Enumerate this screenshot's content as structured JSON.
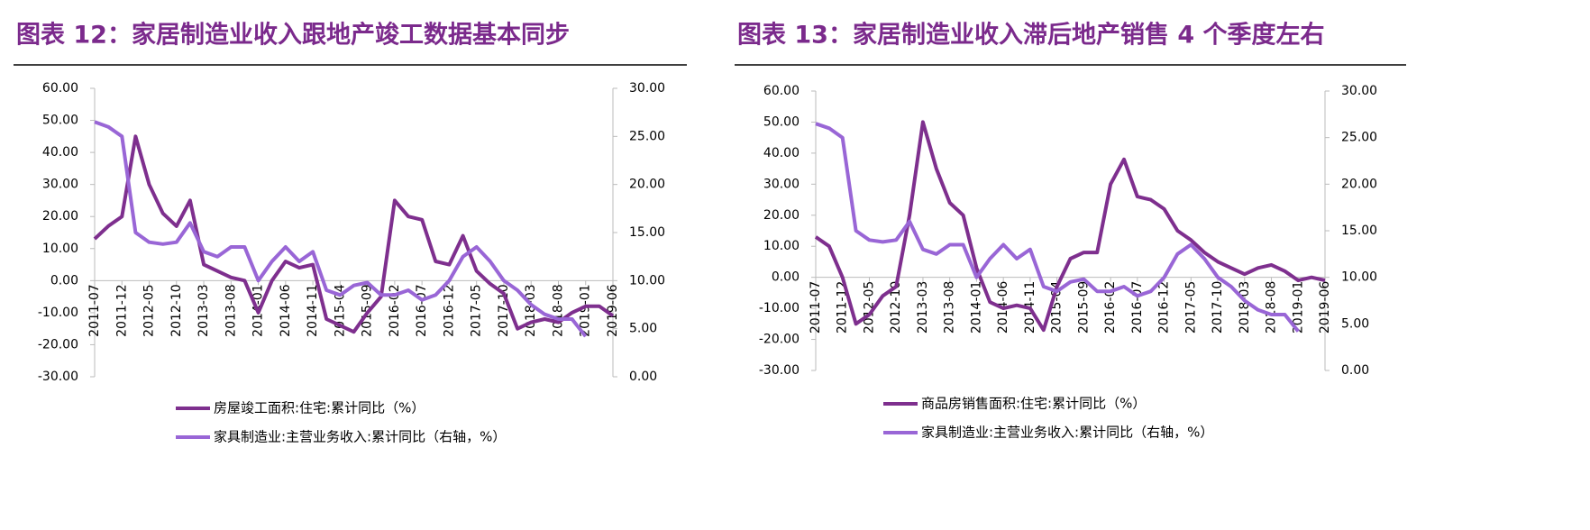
{
  "chart_data": [
    {
      "type": "line",
      "title": "图表 12：家居制造业收入跟地产竣工数据基本同步",
      "categories": [
        "2011-07",
        null,
        "2011-12",
        null,
        "2012-05",
        null,
        "2012-10",
        null,
        "2013-03",
        null,
        "2013-08",
        null,
        "2014-01",
        null,
        "2014-06",
        null,
        "2014-11",
        null,
        "2015-04",
        null,
        "2015-09",
        null,
        "2016-02",
        null,
        "2016-07",
        null,
        "2016-12",
        null,
        "2017-05",
        null,
        "2017-10",
        null,
        "2018-03",
        null,
        "2018-08",
        null,
        "2019-01",
        null,
        "2019-06"
      ],
      "ylim": [
        -30,
        60
      ],
      "yticks": [
        {
          "value": -30,
          "label": "-30.00"
        },
        {
          "value": -20,
          "label": "-20.00"
        },
        {
          "value": -10,
          "label": "-10.00"
        },
        {
          "value": 0,
          "label": "0.00"
        },
        {
          "value": 10,
          "label": "10.00"
        },
        {
          "value": 20,
          "label": "20.00"
        },
        {
          "value": 30,
          "label": "30.00"
        },
        {
          "value": 40,
          "label": "40.00"
        },
        {
          "value": 50,
          "label": "50.00"
        },
        {
          "value": 60,
          "label": "60.00"
        }
      ],
      "y2lim": [
        0,
        30
      ],
      "y2ticks": [
        {
          "value": 0,
          "label": "0.00"
        },
        {
          "value": 5,
          "label": "5.00"
        },
        {
          "value": 10,
          "label": "10.00"
        },
        {
          "value": 15,
          "label": "15.00"
        },
        {
          "value": 20,
          "label": "20.00"
        },
        {
          "value": 25,
          "label": "25.00"
        },
        {
          "value": 30,
          "label": "30.00"
        }
      ],
      "series": [
        {
          "name": "房屋竣工面积:住宅:累计同比（%）",
          "color": "#7e2f8e",
          "values": [
            13,
            17,
            20,
            45,
            30,
            21,
            17,
            25,
            5,
            3,
            1,
            0,
            -10,
            0,
            6,
            4,
            5,
            -12,
            -14,
            -16,
            -10,
            -5,
            25,
            20,
            19,
            6,
            5,
            14,
            3,
            -1,
            -4,
            -15,
            -13,
            -12,
            -13,
            -10,
            -8,
            -8,
            -11
          ]
        },
        {
          "name": "家具制造业:主营业务收入:累计同比（右轴，%）",
          "color": "#9966d6",
          "axis": "y2",
          "values": [
            26.5,
            26,
            25,
            15,
            14,
            13.8,
            14,
            16,
            13,
            12.5,
            13.5,
            13.5,
            10,
            12,
            13.5,
            12,
            13,
            9,
            8.5,
            9.5,
            9.8,
            8.5,
            8.5,
            9,
            8,
            8.5,
            10,
            12.5,
            13.5,
            12,
            10,
            9,
            7.5,
            6.5,
            6,
            6,
            4.2,
            null,
            null
          ]
        }
      ]
    },
    {
      "type": "line",
      "title": "图表 13：家居制造业收入滞后地产销售 4 个季度左右",
      "categories": [
        "2011-07",
        null,
        "2011-12",
        null,
        "2012-05",
        null,
        "2012-10",
        null,
        "2013-03",
        null,
        "2013-08",
        null,
        "2014-01",
        null,
        "2014-06",
        null,
        "2014-11",
        null,
        "2015-04",
        null,
        "2015-09",
        null,
        "2016-02",
        null,
        "2016-07",
        null,
        "2016-12",
        null,
        "2017-05",
        null,
        "2017-10",
        null,
        "2018-03",
        null,
        "2018-08",
        null,
        "2019-01",
        null,
        "2019-06"
      ],
      "ylim": [
        -30,
        60
      ],
      "yticks": [
        {
          "value": -30,
          "label": "-30.00"
        },
        {
          "value": -20,
          "label": "-20.00"
        },
        {
          "value": -10,
          "label": "-10.00"
        },
        {
          "value": 0,
          "label": "0.00"
        },
        {
          "value": 10,
          "label": "10.00"
        },
        {
          "value": 20,
          "label": "20.00"
        },
        {
          "value": 30,
          "label": "30.00"
        },
        {
          "value": 40,
          "label": "40.00"
        },
        {
          "value": 50,
          "label": "50.00"
        },
        {
          "value": 60,
          "label": "60.00"
        }
      ],
      "y2lim": [
        0,
        30
      ],
      "y2ticks": [
        {
          "value": 0,
          "label": "0.00"
        },
        {
          "value": 5,
          "label": "5.00"
        },
        {
          "value": 10,
          "label": "10.00"
        },
        {
          "value": 15,
          "label": "15.00"
        },
        {
          "value": 20,
          "label": "20.00"
        },
        {
          "value": 25,
          "label": "25.00"
        },
        {
          "value": 30,
          "label": "30.00"
        }
      ],
      "series": [
        {
          "name": "商品房销售面积:住宅:累计同比（%）",
          "color": "#7e2f8e",
          "values": [
            13,
            10,
            0,
            -15,
            -12,
            -6,
            -3,
            20,
            50,
            35,
            24,
            20,
            3,
            -8,
            -10,
            -9,
            -10,
            -17,
            -3,
            6,
            8,
            8,
            30,
            38,
            26,
            25,
            22,
            15,
            12,
            8,
            5,
            3,
            1,
            3,
            4,
            2,
            -1,
            0,
            -1
          ]
        },
        {
          "name": "家具制造业:主营业务收入:累计同比（右轴，%）",
          "color": "#9966d6",
          "axis": "y2",
          "values": [
            26.5,
            26,
            25,
            15,
            14,
            13.8,
            14,
            16,
            13,
            12.5,
            13.5,
            13.5,
            10,
            12,
            13.5,
            12,
            13,
            9,
            8.5,
            9.5,
            9.8,
            8.5,
            8.5,
            9,
            8,
            8.5,
            10,
            12.5,
            13.5,
            12,
            10,
            9,
            7.5,
            6.5,
            6,
            6,
            4.2,
            null,
            null
          ]
        }
      ]
    }
  ]
}
